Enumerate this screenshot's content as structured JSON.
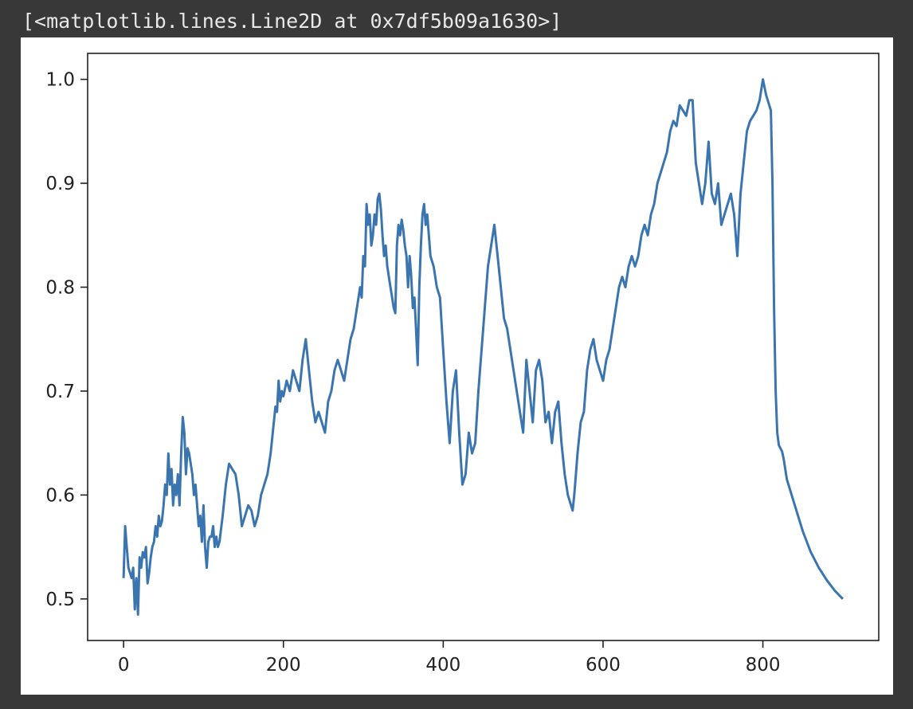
{
  "cell_output": {
    "repr_text": "[<matplotlib.lines.Line2D at 0x7df5b09a1630>]"
  },
  "colors": {
    "background": "#383838",
    "figure": "#ffffff",
    "line": "#3b75af",
    "axes": "#222222"
  },
  "chart_data": {
    "type": "line",
    "title": "",
    "xlabel": "",
    "ylabel": "",
    "xlim": [
      -45,
      945
    ],
    "ylim": [
      0.46,
      1.025
    ],
    "grid": false,
    "legend": "none",
    "xticks": [
      0,
      200,
      400,
      600,
      800
    ],
    "xtick_labels": [
      "0",
      "200",
      "400",
      "600",
      "800"
    ],
    "yticks": [
      0.5,
      0.6,
      0.7,
      0.8,
      0.9,
      1.0
    ],
    "ytick_labels": [
      "0.5",
      "0.6",
      "0.7",
      "0.8",
      "0.9",
      "1.0"
    ],
    "series": [
      {
        "x": [
          0,
          2,
          4,
          6,
          8,
          10,
          12,
          14,
          16,
          18,
          20,
          22,
          24,
          26,
          28,
          30,
          32,
          34,
          36,
          38,
          40,
          42,
          44,
          46,
          48,
          50,
          52,
          54,
          56,
          58,
          60,
          62,
          64,
          66,
          68,
          70,
          72,
          74,
          76,
          78,
          80,
          82,
          84,
          86,
          88,
          90,
          92,
          94,
          96,
          98,
          100,
          102,
          104,
          106,
          108,
          110,
          112,
          114,
          116,
          118,
          120,
          124,
          128,
          132,
          136,
          140,
          144,
          148,
          152,
          156,
          160,
          164,
          168,
          172,
          176,
          180,
          184,
          188,
          190,
          192,
          194,
          196,
          198,
          200,
          204,
          208,
          212,
          216,
          220,
          224,
          228,
          232,
          236,
          240,
          244,
          248,
          252,
          256,
          260,
          264,
          268,
          272,
          276,
          280,
          284,
          288,
          292,
          296,
          298,
          300,
          302,
          304,
          306,
          308,
          310,
          312,
          314,
          316,
          318,
          320,
          322,
          324,
          326,
          328,
          330,
          332,
          334,
          336,
          338,
          340,
          342,
          344,
          346,
          348,
          350,
          352,
          354,
          356,
          358,
          360,
          362,
          364,
          366,
          368,
          370,
          372,
          374,
          376,
          378,
          380,
          384,
          388,
          392,
          396,
          400,
          404,
          408,
          412,
          416,
          420,
          424,
          428,
          432,
          436,
          440,
          444,
          448,
          452,
          456,
          460,
          464,
          468,
          472,
          476,
          480,
          484,
          488,
          492,
          496,
          500,
          504,
          508,
          512,
          516,
          520,
          524,
          528,
          532,
          536,
          540,
          544,
          548,
          552,
          556,
          560,
          562,
          564,
          566,
          568,
          572,
          576,
          580,
          584,
          588,
          592,
          596,
          600,
          604,
          608,
          612,
          616,
          620,
          624,
          628,
          632,
          636,
          640,
          644,
          648,
          652,
          656,
          660,
          664,
          668,
          672,
          676,
          680,
          684,
          688,
          692,
          696,
          700,
          704,
          708,
          712,
          716,
          720,
          724,
          728,
          732,
          736,
          740,
          744,
          748,
          752,
          756,
          760,
          764,
          768,
          772,
          776,
          780,
          784,
          788,
          792,
          796,
          800,
          804,
          808,
          810,
          812,
          814,
          816,
          818,
          820,
          822,
          824,
          826,
          830,
          840,
          850,
          860,
          870,
          880,
          890,
          900
        ],
        "y": [
          0.52,
          0.57,
          0.55,
          0.53,
          0.525,
          0.52,
          0.53,
          0.49,
          0.52,
          0.485,
          0.54,
          0.53,
          0.545,
          0.54,
          0.55,
          0.515,
          0.525,
          0.54,
          0.55,
          0.555,
          0.57,
          0.56,
          0.58,
          0.57,
          0.575,
          0.59,
          0.61,
          0.6,
          0.64,
          0.61,
          0.625,
          0.59,
          0.61,
          0.6,
          0.62,
          0.59,
          0.64,
          0.675,
          0.66,
          0.62,
          0.645,
          0.64,
          0.63,
          0.62,
          0.6,
          0.61,
          0.59,
          0.57,
          0.58,
          0.555,
          0.59,
          0.55,
          0.53,
          0.555,
          0.56,
          0.56,
          0.57,
          0.55,
          0.56,
          0.55,
          0.555,
          0.58,
          0.61,
          0.63,
          0.625,
          0.62,
          0.6,
          0.57,
          0.58,
          0.59,
          0.585,
          0.57,
          0.58,
          0.6,
          0.61,
          0.62,
          0.64,
          0.67,
          0.685,
          0.68,
          0.71,
          0.69,
          0.7,
          0.695,
          0.71,
          0.7,
          0.72,
          0.71,
          0.7,
          0.73,
          0.75,
          0.72,
          0.69,
          0.67,
          0.68,
          0.67,
          0.66,
          0.69,
          0.7,
          0.72,
          0.73,
          0.72,
          0.71,
          0.73,
          0.75,
          0.76,
          0.78,
          0.8,
          0.79,
          0.83,
          0.82,
          0.88,
          0.86,
          0.87,
          0.84,
          0.85,
          0.87,
          0.86,
          0.885,
          0.89,
          0.875,
          0.85,
          0.83,
          0.84,
          0.82,
          0.81,
          0.8,
          0.79,
          0.78,
          0.775,
          0.84,
          0.86,
          0.85,
          0.865,
          0.855,
          0.84,
          0.83,
          0.8,
          0.83,
          0.81,
          0.78,
          0.79,
          0.76,
          0.725,
          0.8,
          0.84,
          0.87,
          0.88,
          0.86,
          0.87,
          0.83,
          0.82,
          0.8,
          0.79,
          0.74,
          0.69,
          0.65,
          0.7,
          0.72,
          0.66,
          0.61,
          0.62,
          0.66,
          0.64,
          0.65,
          0.7,
          0.74,
          0.78,
          0.82,
          0.84,
          0.86,
          0.83,
          0.8,
          0.77,
          0.76,
          0.74,
          0.72,
          0.7,
          0.68,
          0.66,
          0.73,
          0.7,
          0.67,
          0.72,
          0.73,
          0.71,
          0.67,
          0.68,
          0.65,
          0.68,
          0.69,
          0.65,
          0.62,
          0.6,
          0.59,
          0.585,
          0.6,
          0.62,
          0.64,
          0.67,
          0.68,
          0.72,
          0.74,
          0.75,
          0.73,
          0.72,
          0.71,
          0.73,
          0.74,
          0.76,
          0.78,
          0.8,
          0.81,
          0.8,
          0.82,
          0.83,
          0.82,
          0.83,
          0.85,
          0.86,
          0.85,
          0.87,
          0.88,
          0.9,
          0.91,
          0.92,
          0.93,
          0.95,
          0.96,
          0.955,
          0.975,
          0.97,
          0.965,
          0.98,
          0.98,
          0.92,
          0.9,
          0.88,
          0.9,
          0.94,
          0.89,
          0.88,
          0.9,
          0.86,
          0.87,
          0.88,
          0.89,
          0.87,
          0.83,
          0.89,
          0.92,
          0.95,
          0.96,
          0.965,
          0.97,
          0.98,
          1.0,
          0.985,
          0.975,
          0.97,
          0.9,
          0.78,
          0.7,
          0.66,
          0.648,
          0.645,
          0.642,
          0.635,
          0.615,
          0.59,
          0.565,
          0.545,
          0.53,
          0.518,
          0.508,
          0.5
        ]
      }
    ]
  }
}
